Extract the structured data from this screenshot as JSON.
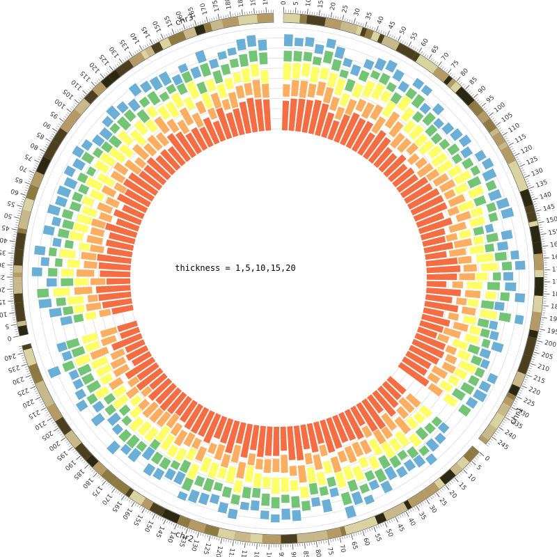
{
  "chart_data": {
    "type": "circular-stacked-bar",
    "annotation": "thickness = 1,5,10,15,20",
    "chromosomes": [
      {
        "name": "chr1",
        "length": 249
      },
      {
        "name": "chr2",
        "length": 243
      },
      {
        "name": "chr3",
        "length": 198
      }
    ],
    "tick_step_mb": 5,
    "tick_label_step_mb": 5,
    "layer_thickness": [
      1,
      5,
      10,
      15,
      20
    ],
    "layer_colors": [
      "#f46d43",
      "#fdae61",
      "#ffff66",
      "#74c476",
      "#6baed6"
    ],
    "bin_size_mb": 5,
    "ideogram_colors": [
      "#d8d3a0",
      "#c8b98a",
      "#b49a64",
      "#8c7a40",
      "#4a4020",
      "#2a2810",
      "#c04a1a"
    ],
    "grid_rings": 10
  }
}
